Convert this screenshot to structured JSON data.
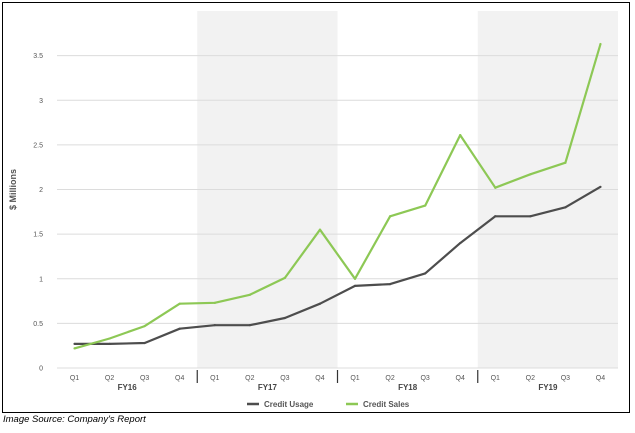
{
  "source_caption": "Image Source: Company's Report",
  "chart_data": {
    "type": "line",
    "title": "",
    "ylabel": "$ Millions",
    "xlabel": "",
    "ylim": [
      0,
      4
    ],
    "yticks": [
      0,
      0.5,
      1,
      1.5,
      2,
      2.5,
      3,
      3.5
    ],
    "ytick_labels": [
      "0",
      "0.5",
      "1",
      "1.5",
      "2",
      "2.5",
      "3",
      "3.5"
    ],
    "categories": [
      "Q1",
      "Q2",
      "Q3",
      "Q4",
      "Q1",
      "Q2",
      "Q3",
      "Q4",
      "Q1",
      "Q2",
      "Q3",
      "Q4",
      "Q1",
      "Q2",
      "Q3",
      "Q4"
    ],
    "groups": [
      {
        "label": "FY16",
        "shaded": false
      },
      {
        "label": "FY17",
        "shaded": true
      },
      {
        "label": "FY18",
        "shaded": false
      },
      {
        "label": "FY19",
        "shaded": true
      }
    ],
    "grid": true,
    "legend_position": "bottom",
    "series": [
      {
        "name": "Credit Usage",
        "color": "#4d4d4d",
        "values": [
          0.27,
          0.27,
          0.28,
          0.44,
          0.48,
          0.48,
          0.56,
          0.72,
          0.92,
          0.94,
          1.06,
          1.4,
          1.7,
          1.7,
          1.8,
          2.03
        ]
      },
      {
        "name": "Credit Sales",
        "color": "#8dc855",
        "values": [
          0.22,
          0.33,
          0.47,
          0.72,
          0.73,
          0.82,
          1.01,
          1.55,
          1.0,
          1.7,
          1.82,
          2.61,
          2.02,
          2.17,
          2.3,
          3.63
        ]
      }
    ]
  }
}
